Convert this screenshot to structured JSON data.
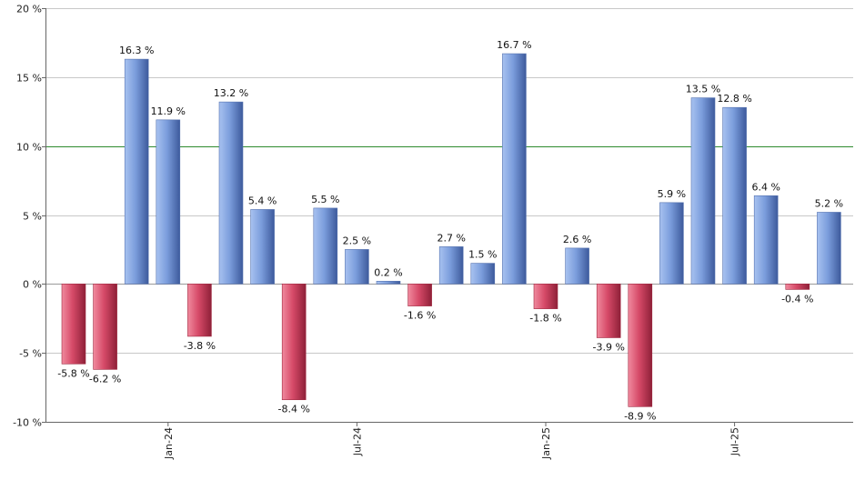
{
  "chart_data": {
    "type": "bar",
    "title": "",
    "xlabel": "",
    "ylabel": "",
    "value_suffix": " %",
    "ylim": [
      -10,
      20
    ],
    "y_ticks": [
      {
        "value": 20,
        "label": "20 %"
      },
      {
        "value": 15,
        "label": "15 %"
      },
      {
        "value": 10,
        "label": "10 %"
      },
      {
        "value": 5,
        "label": "5 %"
      },
      {
        "value": 0,
        "label": "0 %"
      },
      {
        "value": -5,
        "label": "-5 %"
      },
      {
        "value": -10,
        "label": "-10 %"
      }
    ],
    "reference_line": {
      "value": 10,
      "color": "#2e8b2e"
    },
    "grid": true,
    "colors": {
      "positive": "#6e8fd0",
      "negative": "#d04a66"
    },
    "bars": [
      {
        "month": "2023-10",
        "value": -5.8,
        "label": "-5.8 %"
      },
      {
        "month": "2023-11",
        "value": -6.2,
        "label": "-6.2 %"
      },
      {
        "month": "2023-12",
        "value": 16.3,
        "label": "16.3 %"
      },
      {
        "month": "2024-01",
        "value": 11.9,
        "label": "11.9 %"
      },
      {
        "month": "2024-02",
        "value": -3.8,
        "label": "-3.8 %"
      },
      {
        "month": "2024-03",
        "value": 13.2,
        "label": "13.2 %"
      },
      {
        "month": "2024-04",
        "value": 5.4,
        "label": "5.4 %"
      },
      {
        "month": "2024-05",
        "value": -8.4,
        "label": "-8.4 %"
      },
      {
        "month": "2024-06",
        "value": 5.5,
        "label": "5.5 %"
      },
      {
        "month": "2024-07",
        "value": 2.5,
        "label": "2.5 %"
      },
      {
        "month": "2024-08",
        "value": 0.2,
        "label": "0.2 %"
      },
      {
        "month": "2024-09",
        "value": -1.6,
        "label": "-1.6 %"
      },
      {
        "month": "2024-10",
        "value": 2.7,
        "label": "2.7 %"
      },
      {
        "month": "2024-11",
        "value": 1.5,
        "label": "1.5 %"
      },
      {
        "month": "2024-12",
        "value": 16.7,
        "label": "16.7 %"
      },
      {
        "month": "2025-01",
        "value": -1.8,
        "label": "-1.8 %"
      },
      {
        "month": "2025-02",
        "value": 2.6,
        "label": "2.6 %"
      },
      {
        "month": "2025-03",
        "value": -3.9,
        "label": "-3.9 %"
      },
      {
        "month": "2025-04",
        "value": -8.9,
        "label": "-8.9 %"
      },
      {
        "month": "2025-05",
        "value": 5.9,
        "label": "5.9 %"
      },
      {
        "month": "2025-06",
        "value": 13.5,
        "label": "13.5 %"
      },
      {
        "month": "2025-07",
        "value": 12.8,
        "label": "12.8 %"
      },
      {
        "month": "2025-08",
        "value": 6.4,
        "label": "6.4 %"
      },
      {
        "month": "2025-09",
        "value": -0.4,
        "label": "-0.4 %"
      },
      {
        "month": "2025-10",
        "value": 5.2,
        "label": "5.2 %"
      }
    ],
    "x_ticks": [
      {
        "month": "2024-01",
        "label": "Jan-24"
      },
      {
        "month": "2024-07",
        "label": "Jul-24"
      },
      {
        "month": "2025-01",
        "label": "Jan-25"
      },
      {
        "month": "2025-07",
        "label": "Jul-25"
      }
    ]
  }
}
